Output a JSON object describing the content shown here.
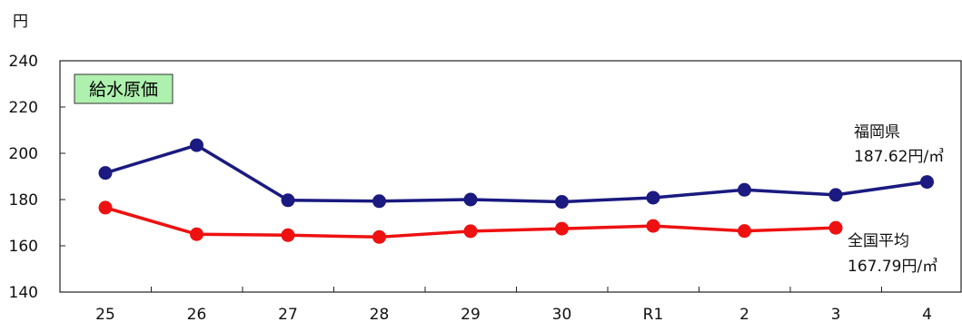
{
  "chart_data": {
    "type": "line",
    "title": "給水原価",
    "y_unit": "円",
    "ylim": [
      140,
      240
    ],
    "yticks": [
      140,
      160,
      180,
      200,
      220,
      240
    ],
    "categories": [
      "25",
      "26",
      "27",
      "28",
      "29",
      "30",
      "R1",
      "2",
      "3",
      "4"
    ],
    "grid": false,
    "series": [
      {
        "name": "福岡県",
        "color": "#1a1a80",
        "values": [
          191.5,
          203.5,
          179.7,
          179.3,
          180.0,
          179.0,
          180.8,
          184.2,
          182.0,
          187.62
        ],
        "label_value": "187.62円/㎥"
      },
      {
        "name": "全国平均",
        "color": "#ee1111",
        "values": [
          176.5,
          165.0,
          164.6,
          163.8,
          166.3,
          167.4,
          168.6,
          166.4,
          167.79,
          null
        ],
        "label_value": "167.79円/㎥"
      }
    ]
  },
  "colors": {
    "title_box_bg": "#aef0ae",
    "axis": "#222222"
  }
}
